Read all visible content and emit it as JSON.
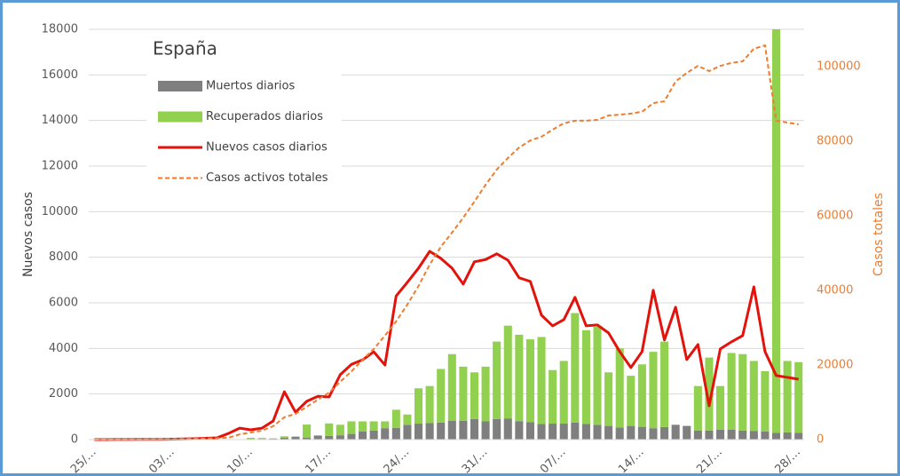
{
  "chart_data": {
    "type": "combo",
    "title": "España",
    "categories": [
      "25/…",
      null,
      null,
      null,
      null,
      null,
      null,
      "03/…",
      null,
      null,
      null,
      null,
      null,
      null,
      "10/…",
      null,
      null,
      null,
      null,
      null,
      null,
      "17/…",
      null,
      null,
      null,
      null,
      null,
      null,
      "24/…",
      null,
      null,
      null,
      null,
      null,
      null,
      "31/…",
      null,
      null,
      null,
      null,
      null,
      null,
      "07/…",
      null,
      null,
      null,
      null,
      null,
      null,
      "14/…",
      null,
      null,
      null,
      null,
      null,
      null,
      "21/…",
      null,
      null,
      null,
      null,
      null,
      null,
      "28/…"
    ],
    "y_label": "Nuevos casos",
    "y2_label": "Casos totales",
    "ylim": [
      0,
      18000
    ],
    "yticks": [
      0,
      2000,
      4000,
      6000,
      8000,
      10000,
      12000,
      14000,
      16000,
      18000
    ],
    "y2lim": [
      0,
      110000
    ],
    "y2ticks": [
      0,
      20000,
      40000,
      60000,
      80000,
      100000
    ],
    "grid": true,
    "legend": "upper-left",
    "stacked": true,
    "series": [
      {
        "name": "Muertos diarios",
        "color": "#7f7f7f",
        "type": "bar",
        "values": [
          0,
          0,
          0,
          0,
          0,
          0,
          0,
          0,
          0,
          0,
          0,
          0,
          5,
          10,
          20,
          30,
          35,
          85,
          120,
          90,
          180,
          160,
          190,
          250,
          350,
          400,
          500,
          510,
          650,
          700,
          720,
          750,
          830,
          830,
          900,
          800,
          900,
          930,
          810,
          760,
          690,
          700,
          700,
          750,
          690,
          650,
          600,
          530,
          600,
          560,
          500,
          550,
          650,
          600,
          400,
          400,
          430,
          440,
          400,
          370,
          350,
          300,
          320,
          300
        ]
      },
      {
        "name": "Recuperados diarios",
        "color": "#92d050",
        "type": "bar",
        "values": [
          0,
          0,
          0,
          0,
          0,
          0,
          0,
          0,
          0,
          0,
          0,
          0,
          0,
          0,
          60,
          40,
          20,
          60,
          20,
          570,
          0,
          550,
          460,
          550,
          450,
          400,
          300,
          800,
          450,
          1550,
          1630,
          2350,
          2920,
          2370,
          2050,
          2400,
          3400,
          4070,
          3790,
          3640,
          3810,
          2350,
          2750,
          4800,
          4110,
          4300,
          2350,
          3470,
          2200,
          2740,
          3350,
          3750,
          0,
          0,
          1950,
          3200,
          1920,
          3360,
          3350,
          3080,
          2650,
          17700,
          3130,
          3100
        ]
      },
      {
        "name": "Nuevos casos diarios",
        "color": "#e3120b",
        "type": "line",
        "values": [
          0,
          2,
          3,
          6,
          8,
          10,
          10,
          20,
          30,
          40,
          60,
          80,
          270,
          500,
          430,
          500,
          820,
          2100,
          1200,
          1680,
          1900,
          1870,
          2850,
          3300,
          3500,
          3850,
          3270,
          6300,
          6900,
          7520,
          8260,
          7950,
          7520,
          6820,
          7800,
          7900,
          8150,
          7870,
          7100,
          6940,
          5460,
          4990,
          5260,
          6240,
          4990,
          5030,
          4680,
          3860,
          3160,
          3860,
          6550,
          4370,
          5810,
          3510,
          4170,
          1480,
          3980,
          4290,
          4560,
          6700,
          3860,
          2810,
          2730,
          2650
        ]
      },
      {
        "name": "Casos activos totales",
        "color": "#ed7d31",
        "type": "line",
        "dashed": true,
        "axis": "y2",
        "values": [
          0,
          10,
          20,
          40,
          60,
          80,
          100,
          150,
          200,
          250,
          300,
          400,
          500,
          1400,
          1900,
          2400,
          3600,
          6000,
          6900,
          8800,
          10700,
          12600,
          15500,
          18300,
          21400,
          24300,
          27900,
          31700,
          36200,
          41200,
          46900,
          51700,
          55500,
          59500,
          63800,
          68300,
          72400,
          75500,
          78300,
          80200,
          81200,
          83100,
          84800,
          85500,
          85500,
          85700,
          86900,
          87100,
          87400,
          87900,
          90200,
          90700,
          96000,
          98300,
          100200,
          98800,
          100200,
          101000,
          101400,
          104800,
          105700,
          85500,
          85000,
          84500
        ]
      }
    ]
  }
}
